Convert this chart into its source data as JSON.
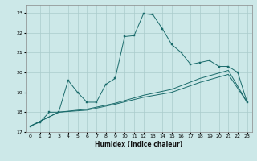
{
  "background_color": "#cce8e8",
  "grid_color": "#aacccc",
  "line_color": "#1a6b6b",
  "xlabel": "Humidex (Indice chaleur)",
  "xlim": [
    -0.5,
    23.5
  ],
  "ylim": [
    17,
    23.4
  ],
  "yticks": [
    17,
    18,
    19,
    20,
    21,
    22,
    23
  ],
  "xticks": [
    0,
    1,
    2,
    3,
    4,
    5,
    6,
    7,
    8,
    9,
    10,
    11,
    12,
    13,
    14,
    15,
    16,
    17,
    18,
    19,
    20,
    21,
    22,
    23
  ],
  "series1_x": [
    0,
    1,
    2,
    3,
    4,
    5,
    6,
    7,
    8,
    9,
    10,
    11,
    12,
    13,
    14,
    15,
    16,
    17,
    18,
    19,
    20,
    21,
    22,
    23
  ],
  "series1_y": [
    17.3,
    17.5,
    18.0,
    18.0,
    19.6,
    19.0,
    18.5,
    18.5,
    19.4,
    19.7,
    21.8,
    21.85,
    22.95,
    22.9,
    22.2,
    21.4,
    21.0,
    20.4,
    20.5,
    20.6,
    20.3,
    20.3,
    20.0,
    18.5
  ],
  "series2_x": [
    0,
    3,
    6,
    9,
    12,
    15,
    18,
    21,
    23
  ],
  "series2_y": [
    17.3,
    18.0,
    18.15,
    18.45,
    18.85,
    19.15,
    19.7,
    20.1,
    18.5
  ],
  "series3_x": [
    0,
    3,
    6,
    9,
    12,
    15,
    18,
    21,
    23
  ],
  "series3_y": [
    17.3,
    18.0,
    18.1,
    18.4,
    18.75,
    19.0,
    19.5,
    19.9,
    18.5
  ]
}
